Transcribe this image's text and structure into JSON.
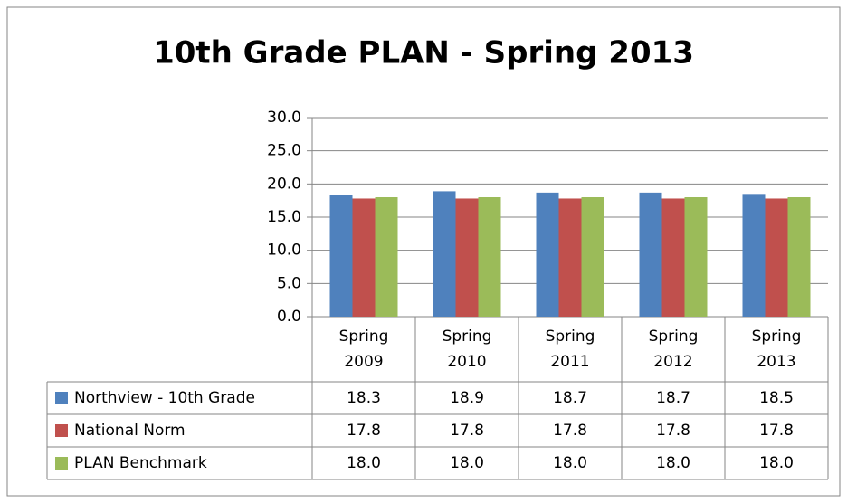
{
  "chart_data": {
    "type": "bar",
    "title": "10th Grade PLAN - Spring 2013",
    "categories": [
      "Spring 2009",
      "Spring 2010",
      "Spring 2011",
      "Spring 2012",
      "Spring 2013"
    ],
    "series": [
      {
        "name": "Northview - 10th Grade",
        "color": "#4f81bd",
        "values": [
          18.3,
          18.9,
          18.7,
          18.7,
          18.5
        ],
        "value_labels": [
          "18.3",
          "18.9",
          "18.7",
          "18.7",
          "18.5"
        ]
      },
      {
        "name": "National Norm",
        "color": "#c0504d",
        "values": [
          17.8,
          17.8,
          17.8,
          17.8,
          17.8
        ],
        "value_labels": [
          "17.8",
          "17.8",
          "17.8",
          "17.8",
          "17.8"
        ]
      },
      {
        "name": "PLAN Benchmark",
        "color": "#9bbb59",
        "values": [
          18,
          18,
          18,
          18,
          18
        ],
        "value_labels": [
          "18.0",
          "18.0",
          "18.0",
          "18.0",
          "18.0"
        ]
      }
    ],
    "ylim": [
      0,
      30
    ],
    "yticks": [
      {
        "value": 0,
        "label": "0.0"
      },
      {
        "value": 5,
        "label": "5.0"
      },
      {
        "value": 10,
        "label": "10.0"
      },
      {
        "value": 15,
        "label": "15.0"
      },
      {
        "value": 20,
        "label": "20.0"
      },
      {
        "value": 25,
        "label": "25.0"
      },
      {
        "value": 30,
        "label": "30.0"
      }
    ],
    "grid": true
  }
}
